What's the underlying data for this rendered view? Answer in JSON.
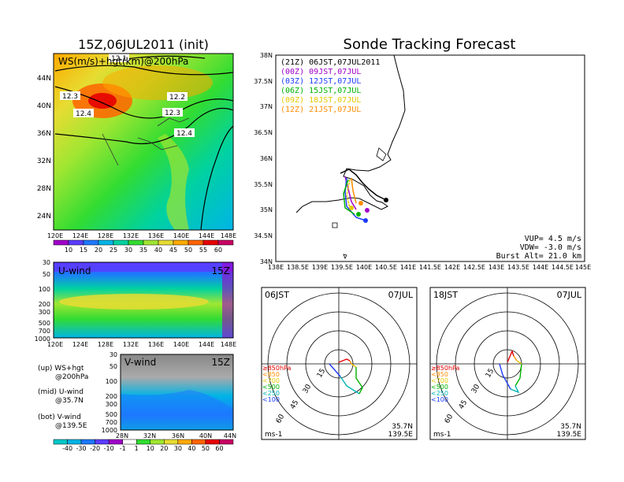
{
  "main_map": {
    "title": "15Z,06JUL2011 (init)",
    "label": "WS(m/s)+hgt(km)@200hPa",
    "y_ticks": [
      "44N",
      "40N",
      "36N",
      "32N",
      "28N",
      "24N"
    ],
    "x_ticks": [
      "120E",
      "124E",
      "128E",
      "132E",
      "136E",
      "140E",
      "144E",
      "148E"
    ],
    "contour_labels": [
      "12.1",
      "12.3",
      "12.4",
      "12.2",
      "12.3",
      "12.4"
    ]
  },
  "ws_colorbar": {
    "labels": [
      "10",
      "15",
      "20",
      "25",
      "30",
      "35",
      "40",
      "45",
      "50",
      "55",
      "60"
    ],
    "colors": [
      "#a000c8",
      "#5a3cff",
      "#1e78ff",
      "#00b4e6",
      "#00d2a0",
      "#32dc32",
      "#a0e632",
      "#e6dc32",
      "#ffaa00",
      "#ff6400",
      "#e60000",
      "#c80064"
    ]
  },
  "u_panel": {
    "label": "U-wind",
    "time": "15Z",
    "y_ticks": [
      "30",
      "50",
      "100",
      "200",
      "300",
      "500",
      "700",
      "1000"
    ],
    "x_ticks": [
      "120E",
      "124E",
      "128E",
      "132E",
      "136E",
      "140E",
      "144E",
      "148E"
    ]
  },
  "v_panel": {
    "label": "V-wind",
    "time": "15Z",
    "y_ticks": [
      "30",
      "50",
      "100",
      "200",
      "300",
      "500",
      "700",
      "1000"
    ],
    "x_ticks": [
      "28N",
      "32N",
      "36N",
      "40N",
      "44N"
    ]
  },
  "legend_notes": [
    {
      "line1": "(up) WS+hgt",
      "line2": "@200hPa"
    },
    {
      "line1": "(mid) U-wind",
      "line2": "@35.7N"
    },
    {
      "line1": "(bot) V-wind",
      "line2": "@139.5E"
    }
  ],
  "uv_colorbar": {
    "labels": [
      "-40",
      "-30",
      "-20",
      "-10",
      "-1",
      "1",
      "10",
      "20",
      "30",
      "40",
      "50",
      "60"
    ],
    "colors": [
      "#00c8c8",
      "#00b4e6",
      "#1e78ff",
      "#5a3cff",
      "#a000c8",
      "#ffffff",
      "#32dc32",
      "#a0e632",
      "#e6dc32",
      "#ffaa00",
      "#ff6400",
      "#e60000",
      "#c80064"
    ]
  },
  "tracking": {
    "title": "Sonde Tracking Forecast",
    "y_ticks": [
      "38N",
      "37.5N",
      "37N",
      "36.5N",
      "36N",
      "35.5N",
      "35N",
      "34.5N",
      "34N"
    ],
    "x_ticks": [
      "138E",
      "138.5E",
      "139E",
      "139.5E",
      "140E",
      "140.5E",
      "141E",
      "141.5E",
      "142E",
      "142.5E",
      "143E",
      "143.5E",
      "144E",
      "144.5E",
      "145E"
    ],
    "legend": [
      {
        "code": "(21Z)",
        "time": "06JST,07JUL2011",
        "color": "#000000"
      },
      {
        "code": "(00Z)",
        "time": "09JST,07JUL",
        "color": "#a000c8"
      },
      {
        "code": "(03Z)",
        "time": "12JST,07JUL",
        "color": "#1e3cff"
      },
      {
        "code": "(06Z)",
        "time": "15JST,07JUL",
        "color": "#00b400"
      },
      {
        "code": "(09Z)",
        "time": "18JST,07JUL",
        "color": "#e6c800"
      },
      {
        "code": "(12Z)",
        "time": "21JST,07JUL",
        "color": "#ff8c00"
      }
    ],
    "vup": "VUP= 4.5 m/s",
    "vdw": "VDW= -3.0 m/s",
    "burst": "Burst Alt= 21.0 km"
  },
  "hodographs": [
    {
      "left_label": "06JST",
      "right_label": "07JUL",
      "lat": "35.7N",
      "lon": "139.5E",
      "unit": "ms-1",
      "rings": [
        "15",
        "30",
        "45",
        "60"
      ]
    },
    {
      "left_label": "18JST",
      "right_label": "07JUL",
      "lat": "35.7N",
      "lon": "139.5E",
      "unit": "ms-1",
      "rings": [
        "15",
        "30",
        "45",
        "60"
      ]
    }
  ],
  "hodo_levels": [
    {
      "label": "≥850hPa",
      "color": "#e60000"
    },
    {
      "label": "<850",
      "color": "#ff8c00"
    },
    {
      "label": "<700",
      "color": "#e6c800"
    },
    {
      "label": "<500",
      "color": "#00b400"
    },
    {
      "label": "<250",
      "color": "#00b4b4"
    },
    {
      "label": "<100",
      "color": "#1e3cff"
    }
  ]
}
